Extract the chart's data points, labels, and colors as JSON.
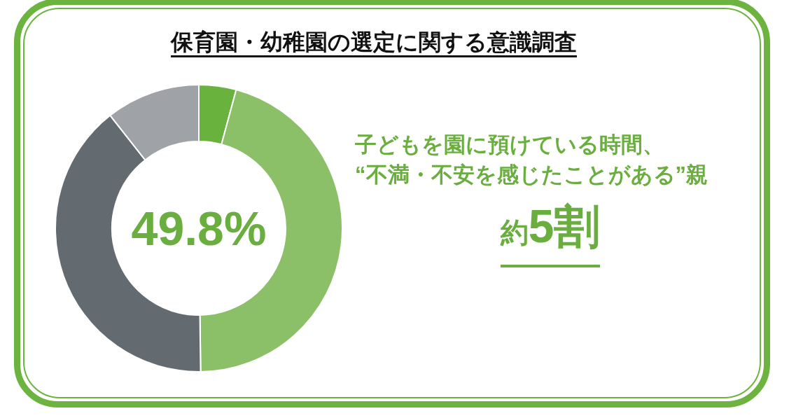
{
  "chart_data": {
    "type": "donut",
    "title": "保育園・幼稚園の選定に関する意識調査",
    "categories": [
      null,
      null,
      null,
      null
    ],
    "values": [
      4.2,
      45.6,
      39.6,
      10.6
    ],
    "colors": [
      "#6ab23e",
      "#8cc068",
      "#636b71",
      "#9fa3a7"
    ],
    "annotations": [
      "49.8%",
      "子どもを園に預けている時間、",
      "“不満・不安を感じたことがある”親",
      "約5割"
    ]
  }
}
